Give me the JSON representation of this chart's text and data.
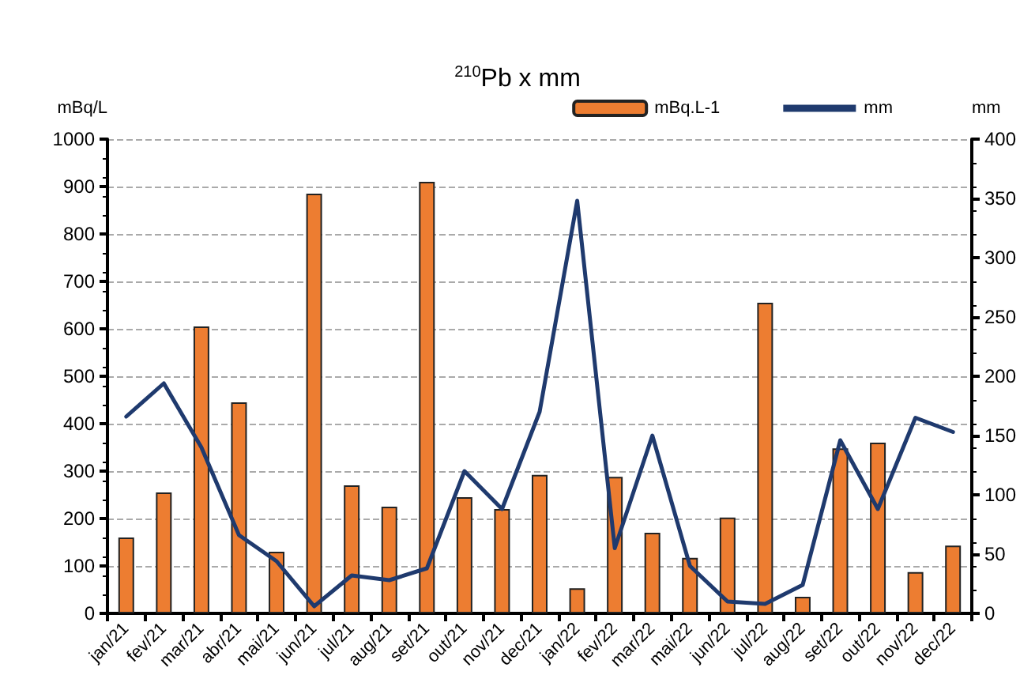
{
  "chart_data": {
    "type": "bar",
    "title": "$^{210}$Pb x mm",
    "ylabel": "mBq/L",
    "y2label": "mm",
    "categories": [
      "jan/21",
      "fev/21",
      "mar/21",
      "abr/21",
      "mai/21",
      "jun/21",
      "jul/21",
      "aug/21",
      "set/21",
      "out/21",
      "nov/21",
      "dec/21",
      "jan/22",
      "fev/22",
      "mar/22",
      "mai/22",
      "jun/22",
      "jul/22",
      "aug/22",
      "set/22",
      "out/22",
      "nov/22",
      "dec/22"
    ],
    "series": [
      {
        "name": "mBq.L-1",
        "color": "#ed7d31",
        "values": [
          160,
          255,
          605,
          445,
          130,
          885,
          270,
          225,
          910,
          245,
          220,
          292,
          53,
          288,
          170,
          117,
          202,
          655,
          35,
          348,
          360,
          87,
          143
        ]
      },
      {
        "name": "mm",
        "type": "line",
        "axis": "y2",
        "color": "#1f3a6e",
        "values": [
          166,
          194,
          140,
          66,
          44,
          6,
          32,
          28,
          38,
          120,
          88,
          170,
          348,
          55,
          150,
          40,
          10,
          8,
          24,
          146,
          88,
          165,
          153
        ]
      }
    ],
    "ylim": [
      0,
      1000
    ],
    "yticks": [
      0,
      100,
      200,
      300,
      400,
      500,
      600,
      700,
      800,
      900,
      1000
    ],
    "y2lim": [
      0,
      400
    ],
    "y2ticks": [
      0,
      50,
      100,
      150,
      200,
      250,
      300,
      350,
      400
    ],
    "grid": "y",
    "legend": "top right",
    "marker": "none",
    "line_style": "solid"
  }
}
